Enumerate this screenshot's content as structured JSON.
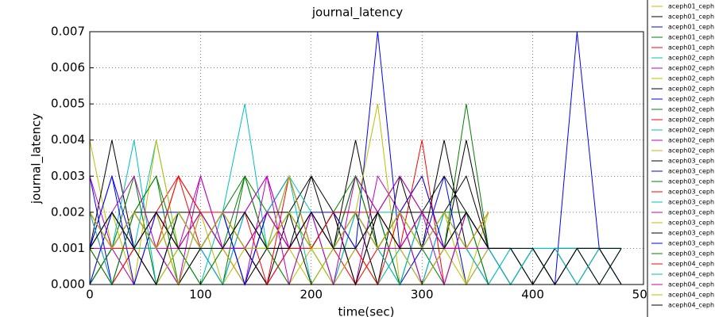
{
  "chart_data": {
    "type": "line",
    "title": "journal_latency",
    "x_label": "time(sec)",
    "y_label": "journal_latency",
    "xlim": [
      0,
      500
    ],
    "ylim": [
      0,
      0.007
    ],
    "xticks": [
      0,
      100,
      200,
      300,
      400,
      500
    ],
    "yticks": [
      {
        "value": 0,
        "label": "0.000"
      },
      {
        "value": 0.001,
        "label": "0.001"
      },
      {
        "value": 0.002,
        "label": "0.002"
      },
      {
        "value": 0.003,
        "label": "0.003"
      },
      {
        "value": 0.004,
        "label": "0.004"
      },
      {
        "value": 0.005,
        "label": "0.005"
      },
      {
        "value": 0.006,
        "label": "0.006"
      },
      {
        "value": 0.007,
        "label": "0.007"
      }
    ],
    "grid": true,
    "legend": "upper right outside",
    "x": [
      0,
      20,
      40,
      60,
      80,
      100,
      120,
      140,
      160,
      180,
      200,
      220,
      240,
      260,
      280,
      300,
      320,
      340,
      360,
      380,
      400,
      420,
      440,
      460,
      480
    ],
    "series": [
      {
        "name": "aceph01_ceph",
        "color": "#bfbf00",
        "values": [
          0.004,
          0.001,
          0,
          0.002,
          0.001,
          0,
          0.001,
          0.002,
          0.001,
          0,
          0.001,
          0.002,
          0.001,
          0,
          0.001,
          0.001,
          0.002,
          0.001,
          0,
          null,
          null,
          null,
          null,
          null,
          null
        ]
      },
      {
        "name": "aceph01_ceph",
        "color": "#000000",
        "values": [
          0.001,
          0.004,
          0.001,
          0,
          0.002,
          0.001,
          0.002,
          0,
          0.001,
          0.002,
          0,
          0.001,
          0.004,
          0.001,
          0.002,
          0,
          0.001,
          0.004,
          0.001,
          0.001,
          0,
          0.001,
          0,
          0.001,
          0
        ]
      },
      {
        "name": "aceph01_ceph",
        "color": "#0000ff",
        "values": [
          0.003,
          0,
          0.002,
          0.001,
          0,
          0.002,
          0.001,
          0.001,
          0,
          0.001,
          0.002,
          0,
          0.001,
          0.007,
          0.001,
          0,
          0.002,
          0.001,
          0,
          null,
          null,
          null,
          null,
          null,
          null
        ]
      },
      {
        "name": "aceph01_ceph",
        "color": "#008000",
        "values": [
          0.002,
          0.001,
          0.003,
          0,
          0.001,
          0.001,
          0,
          0.003,
          0.001,
          0.002,
          0.001,
          0,
          0.002,
          0.001,
          0,
          0.002,
          0.001,
          0.005,
          0.001,
          null,
          null,
          null,
          null,
          null,
          null
        ]
      },
      {
        "name": "aceph01_ceph",
        "color": "#ff0000",
        "values": [
          0.001,
          0,
          0.001,
          0.002,
          0.003,
          0.001,
          0.002,
          0.001,
          0,
          0.001,
          0.002,
          0.001,
          0,
          0.002,
          0.001,
          0.004,
          0,
          0.002,
          0.001,
          null,
          null,
          null,
          null,
          null,
          null
        ]
      },
      {
        "name": "aceph02_ceph",
        "color": "#00bfbf",
        "values": [
          0,
          0.002,
          0.001,
          0.004,
          0.001,
          0,
          0.002,
          0.005,
          0.001,
          0.003,
          0,
          0.001,
          0.002,
          0,
          0.001,
          0.001,
          0.002,
          0.001,
          0,
          0.001,
          0,
          0.001,
          0.001,
          0,
          0.001
        ]
      },
      {
        "name": "aceph02_ceph",
        "color": "#bf00bf",
        "values": [
          0.002,
          0.001,
          0.002,
          0.001,
          0,
          0.003,
          0.001,
          0,
          0.003,
          0.001,
          0.001,
          0.002,
          0,
          0.003,
          0.002,
          0,
          0.001,
          0.002,
          0.001,
          null,
          null,
          null,
          null,
          null,
          null
        ]
      },
      {
        "name": "aceph02_ceph",
        "color": "#bfbf00",
        "values": [
          0.001,
          0.002,
          0,
          0.004,
          0.001,
          0.002,
          0,
          0.001,
          0.002,
          0.001,
          0,
          0.001,
          0.002,
          0.005,
          0,
          0.001,
          0.001,
          0,
          0.002,
          null,
          null,
          null,
          null,
          null,
          null
        ]
      },
      {
        "name": "aceph02_ceph",
        "color": "#000000",
        "values": [
          0,
          0.001,
          0.002,
          0.001,
          0.002,
          0.001,
          0.002,
          0.001,
          0,
          0.002,
          0.003,
          0.001,
          0.002,
          0,
          0.003,
          0.001,
          0.004,
          0.001,
          0.002,
          null,
          null,
          null,
          null,
          null,
          null
        ]
      },
      {
        "name": "aceph02_ceph",
        "color": "#0000ff",
        "values": [
          0.001,
          0.003,
          0.001,
          0,
          0.002,
          0.001,
          0,
          0.002,
          0.001,
          0.003,
          0.001,
          0.002,
          0.001,
          0.002,
          0,
          0.001,
          0.003,
          0,
          0.001,
          0,
          0.001,
          0,
          0.007,
          0.001,
          0
        ]
      },
      {
        "name": "aceph02_ceph",
        "color": "#008000",
        "values": [
          0,
          0.001,
          0.002,
          0.003,
          0,
          0.001,
          0.002,
          0.003,
          0.001,
          0,
          0.002,
          0.001,
          0.003,
          0.001,
          0.002,
          0.001,
          0,
          0.002,
          0.001,
          null,
          null,
          null,
          null,
          null,
          null
        ]
      },
      {
        "name": "aceph02_ceph",
        "color": "#ff0000",
        "values": [
          0.002,
          0,
          0.001,
          0.001,
          0.003,
          0.002,
          0.001,
          0,
          0.002,
          0.003,
          0.001,
          0.002,
          0,
          0.001,
          0.002,
          0.003,
          0.001,
          0.001,
          0.002,
          null,
          null,
          null,
          null,
          null,
          null
        ]
      },
      {
        "name": "aceph02_ceph",
        "color": "#00bfbf",
        "values": [
          0.001,
          0.001,
          0.004,
          0,
          0.002,
          0.001,
          0,
          0.002,
          0.001,
          0.003,
          0.001,
          0,
          0.002,
          0.001,
          0.001,
          0,
          0.002,
          0.001,
          0,
          0.001,
          0.001,
          0,
          0.001,
          0.001,
          0
        ]
      },
      {
        "name": "aceph02_ceph",
        "color": "#bf00bf",
        "values": [
          0.003,
          0.001,
          0,
          0.002,
          0.001,
          0.003,
          0.001,
          0.002,
          0.003,
          0,
          0.002,
          0.001,
          0.003,
          0.002,
          0.001,
          0.002,
          0.001,
          0.002,
          0,
          null,
          null,
          null,
          null,
          null,
          null
        ]
      },
      {
        "name": "aceph02_ceph",
        "color": "#bfbf00",
        "values": [
          0,
          0.002,
          0.001,
          0,
          0.001,
          0.002,
          0.001,
          0,
          0.002,
          0.002,
          0.001,
          0,
          0.001,
          0.002,
          0.001,
          0.001,
          0.002,
          0,
          0.001,
          null,
          null,
          null,
          null,
          null,
          null
        ]
      },
      {
        "name": "aceph03_ceph",
        "color": "#000000",
        "values": [
          0.002,
          0.001,
          0.002,
          0.002,
          0,
          0.001,
          0.002,
          0.002,
          0.001,
          0.001,
          0.003,
          0.002,
          0,
          0.002,
          0.003,
          0.002,
          0.002,
          0.003,
          0.001,
          0,
          0.001,
          0,
          0.001,
          0,
          0.001
        ]
      },
      {
        "name": "aceph03_ceph",
        "color": "#0000ff",
        "values": [
          0.001,
          0.003,
          0,
          0.002,
          0.002,
          0.001,
          0.002,
          0,
          0.002,
          0.003,
          0.001,
          0.002,
          0.002,
          0.001,
          0.002,
          0.003,
          0.001,
          0.002,
          0.001,
          null,
          null,
          null,
          null,
          null,
          null
        ]
      },
      {
        "name": "aceph03_ceph",
        "color": "#008000",
        "values": [
          0,
          0.001,
          0.002,
          0.003,
          0.001,
          0,
          0.001,
          0.003,
          0.002,
          0.001,
          0.002,
          0.001,
          0.003,
          0.002,
          0,
          0.002,
          0.001,
          0.002,
          0.001,
          null,
          null,
          null,
          null,
          null,
          null
        ]
      },
      {
        "name": "aceph03_ceph",
        "color": "#ff0000",
        "values": [
          0.001,
          0.002,
          0.001,
          0.001,
          0.003,
          0.002,
          0.001,
          0.002,
          0,
          0.003,
          0.001,
          0.002,
          0.001,
          0,
          0.002,
          0.001,
          0.002,
          0.001,
          0.002,
          null,
          null,
          null,
          null,
          null,
          null
        ]
      },
      {
        "name": "aceph03_ceph",
        "color": "#00bfbf",
        "values": [
          0.002,
          0,
          0.002,
          0.001,
          0.002,
          0.001,
          0.002,
          0.001,
          0.002,
          0.003,
          0.002,
          0.001,
          0.002,
          0.001,
          0,
          0.002,
          0.001,
          0.002,
          0,
          0,
          0.001,
          0.001,
          0,
          0.001,
          0.001
        ]
      },
      {
        "name": "aceph03_ceph",
        "color": "#bf00bf",
        "values": [
          0.001,
          0.002,
          0.003,
          0.001,
          0.002,
          0.001,
          0.002,
          0.002,
          0.003,
          0.001,
          0.002,
          0,
          0.003,
          0.002,
          0.003,
          0.002,
          0,
          0.002,
          0.001,
          null,
          null,
          null,
          null,
          null,
          null
        ]
      },
      {
        "name": "aceph03_ceph",
        "color": "#bfbf00",
        "values": [
          0.002,
          0.001,
          0.001,
          0.002,
          0,
          0.002,
          0.001,
          0.002,
          0.001,
          0.003,
          0.001,
          0.002,
          0.001,
          0.002,
          0.001,
          0,
          0.001,
          0.002,
          0.001,
          null,
          null,
          null,
          null,
          null,
          null
        ]
      },
      {
        "name": "aceph03_ceph",
        "color": "#000000",
        "values": [
          0.001,
          0.002,
          0.001,
          0,
          0.002,
          0.002,
          0.001,
          0.001,
          0.002,
          0.002,
          0.001,
          0.002,
          0.002,
          0.001,
          0.002,
          0.002,
          0.003,
          0.002,
          0.001,
          0.001,
          0,
          0.001,
          0.001,
          0.001,
          0
        ]
      },
      {
        "name": "aceph03_ceph",
        "color": "#0000ff",
        "values": [
          0,
          0.002,
          0.001,
          0.002,
          0.001,
          0.001,
          0.002,
          0,
          0.002,
          0.001,
          0.002,
          0.002,
          0.001,
          0.002,
          0.001,
          0.002,
          0.001,
          0.002,
          0.001,
          null,
          null,
          null,
          null,
          null,
          null
        ]
      },
      {
        "name": "aceph03_ceph",
        "color": "#008000",
        "values": [
          0.001,
          0,
          0.002,
          0.001,
          0.002,
          0.001,
          0.002,
          0.001,
          0.001,
          0.002,
          0.001,
          0.002,
          0.003,
          0.001,
          0.002,
          0.001,
          0.002,
          0.002,
          0,
          null,
          null,
          null,
          null,
          null,
          null
        ]
      },
      {
        "name": "aceph04_ceph",
        "color": "#ff0000",
        "values": [
          0.002,
          0.001,
          0.001,
          0.002,
          0.001,
          0.002,
          0.002,
          0.001,
          0.002,
          0.001,
          0.001,
          0.002,
          0.002,
          0.002,
          0.001,
          0.002,
          0.001,
          0.001,
          0.002,
          null,
          null,
          null,
          null,
          null,
          null
        ]
      },
      {
        "name": "aceph04_ceph",
        "color": "#00bfbf",
        "values": [
          0.001,
          0.002,
          0.001,
          0.001,
          0.002,
          0.001,
          0.001,
          0.002,
          0.001,
          0.002,
          0.002,
          0.001,
          0.001,
          0.002,
          0.002,
          0.001,
          0.002,
          0.001,
          0.001,
          0,
          0.001,
          0.001,
          0.001,
          0.001,
          0.001
        ]
      },
      {
        "name": "aceph04_ceph",
        "color": "#bf00bf",
        "values": [
          0.001,
          0.001,
          0.002,
          0.001,
          0.001,
          0.002,
          0.001,
          0.001,
          0.002,
          0.001,
          0.002,
          0.001,
          0.002,
          0.001,
          0.001,
          0.002,
          0.001,
          0.001,
          0.001,
          null,
          null,
          null,
          null,
          null,
          null
        ]
      },
      {
        "name": "aceph04_ceph",
        "color": "#bfbf00",
        "values": [
          0.002,
          0.001,
          0.002,
          0.001,
          0.002,
          0.001,
          0.002,
          0.001,
          0.001,
          0.002,
          0.001,
          0.001,
          0.002,
          0.001,
          0.002,
          0.001,
          0.002,
          0.001,
          0.002,
          null,
          null,
          null,
          null,
          null,
          null
        ]
      },
      {
        "name": "aceph04_ceph",
        "color": "#000000",
        "values": [
          0.001,
          0.002,
          0.001,
          0.002,
          0.001,
          0.001,
          0.001,
          0.002,
          0.001,
          0.001,
          0.002,
          0.001,
          0.001,
          0.002,
          0.001,
          0.001,
          0.001,
          0.002,
          0.001,
          0.001,
          0.001,
          0,
          0.001,
          0.001,
          0.001
        ]
      }
    ]
  }
}
